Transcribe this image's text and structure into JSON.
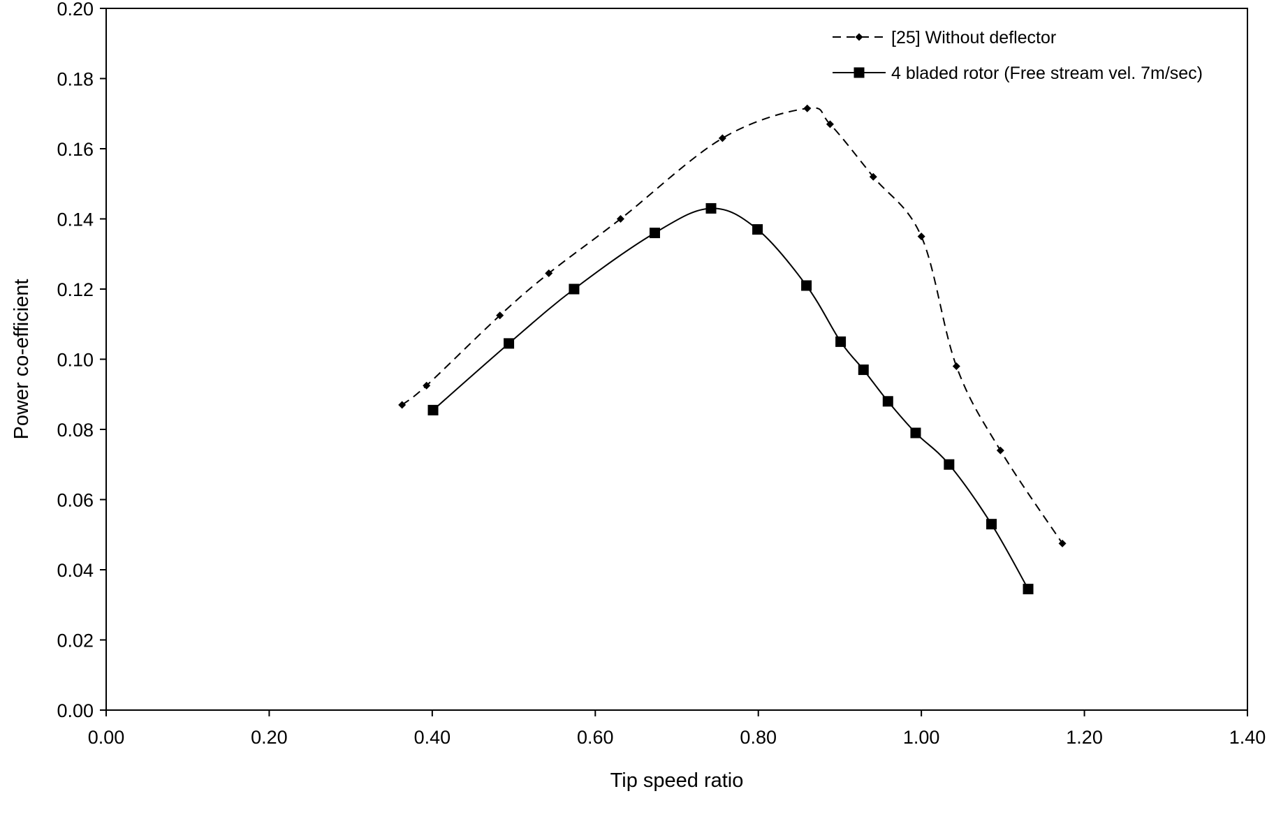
{
  "chart_data": {
    "type": "line",
    "title": "",
    "xlabel": "Tip speed ratio",
    "ylabel": "Power co-efficient",
    "xlim": [
      0,
      1.4
    ],
    "ylim": [
      0,
      0.2
    ],
    "x_ticks": [
      0.0,
      0.2,
      0.4,
      0.6,
      0.8,
      1.0,
      1.2,
      1.4
    ],
    "y_ticks": [
      0.0,
      0.02,
      0.04,
      0.06,
      0.08,
      0.1,
      0.12,
      0.14,
      0.16,
      0.18,
      0.2
    ],
    "x_tick_labels": [
      "0.00",
      "0.20",
      "0.40",
      "0.60",
      "0.80",
      "1.00",
      "1.20",
      "1.40"
    ],
    "y_tick_labels": [
      "0.00",
      "0.02",
      "0.04",
      "0.06",
      "0.08",
      "0.10",
      "0.12",
      "0.14",
      "0.16",
      "0.18",
      "0.20"
    ],
    "grid": false,
    "legend_position": "top-right",
    "series": [
      {
        "name": "[25] Without deflector",
        "line_style": "dashed",
        "marker": "diamond",
        "color": "#000000",
        "x": [
          0.363,
          0.393,
          0.483,
          0.543,
          0.631,
          0.756,
          0.86,
          0.888,
          0.941,
          1.0,
          1.043,
          1.097,
          1.173
        ],
        "y": [
          0.087,
          0.0925,
          0.1125,
          0.1245,
          0.14,
          0.163,
          0.1715,
          0.167,
          0.152,
          0.135,
          0.098,
          0.074,
          0.0475
        ]
      },
      {
        "name": "4 bladed rotor (Free stream vel. 7m/sec)",
        "line_style": "solid",
        "marker": "square",
        "color": "#000000",
        "x": [
          0.401,
          0.494,
          0.574,
          0.673,
          0.742,
          0.799,
          0.859,
          0.901,
          0.929,
          0.959,
          0.993,
          1.034,
          1.086,
          1.131
        ],
        "y": [
          0.0855,
          0.1045,
          0.12,
          0.136,
          0.143,
          0.137,
          0.121,
          0.105,
          0.097,
          0.088,
          0.079,
          0.07,
          0.053,
          0.0345
        ]
      }
    ]
  }
}
